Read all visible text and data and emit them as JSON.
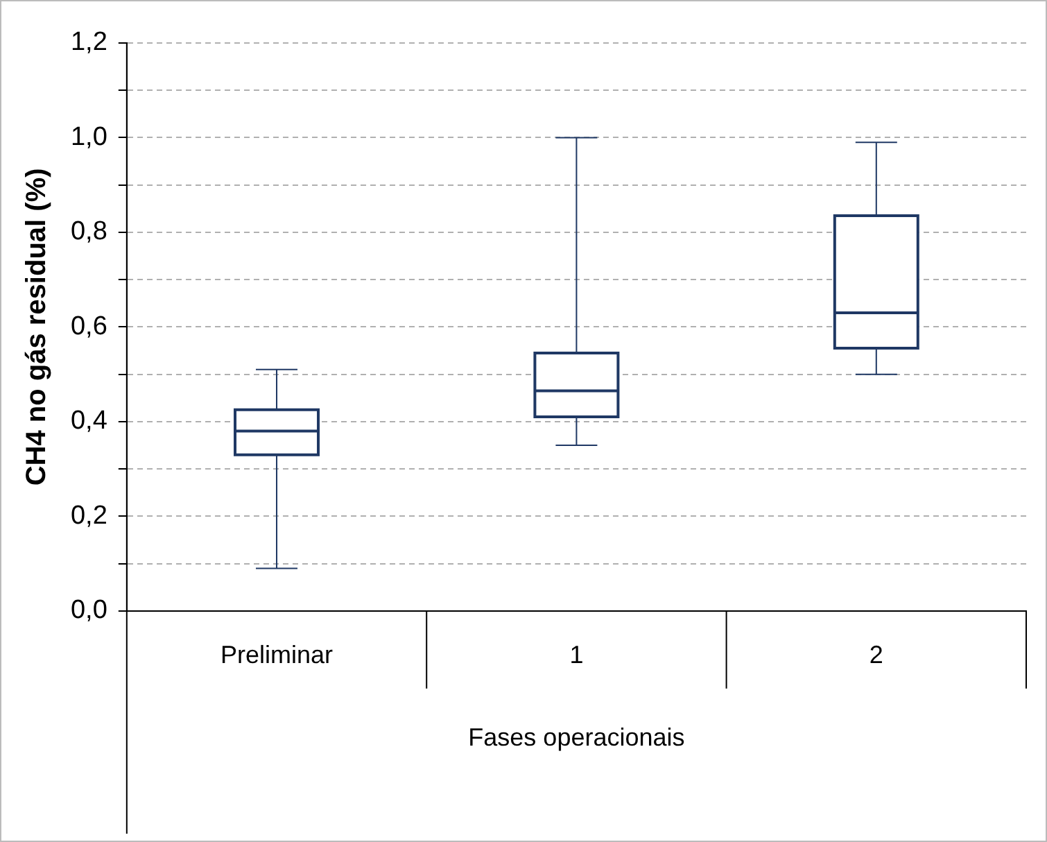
{
  "chart_data": {
    "type": "box",
    "ylabel": "CH4 no gás residual (%)",
    "xlabel": "Fases operacionais",
    "categories": [
      "Preliminar",
      "1",
      "2"
    ],
    "boxes": [
      {
        "low": 0.09,
        "q1": 0.33,
        "median": 0.38,
        "q3": 0.425,
        "high": 0.51
      },
      {
        "low": 0.35,
        "q1": 0.41,
        "median": 0.465,
        "q3": 0.545,
        "high": 1.0
      },
      {
        "low": 0.5,
        "q1": 0.555,
        "median": 0.63,
        "q3": 0.835,
        "high": 0.99
      }
    ],
    "ylim": [
      0,
      1.2
    ],
    "yticks": [
      {
        "value": 0,
        "label": "0,0"
      },
      {
        "value": 0.1,
        "label": null
      },
      {
        "value": 0.2,
        "label": "0,2"
      },
      {
        "value": 0.3,
        "label": null
      },
      {
        "value": 0.4,
        "label": "0,4"
      },
      {
        "value": 0.5,
        "label": null
      },
      {
        "value": 0.6,
        "label": "0,6"
      },
      {
        "value": 0.7,
        "label": null
      },
      {
        "value": 0.8,
        "label": "0,8"
      },
      {
        "value": 0.9,
        "label": null
      },
      {
        "value": 1.0,
        "label": "1,0"
      },
      {
        "value": 1.1,
        "label": null
      },
      {
        "value": 1.2,
        "label": "1,2"
      }
    ],
    "grid": "y"
  }
}
